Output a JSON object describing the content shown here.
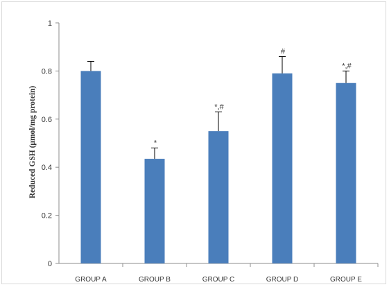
{
  "chart_data": {
    "type": "bar",
    "title": "",
    "xlabel": "",
    "ylabel": "Reduced GSH (μmol/mg protein)",
    "categories": [
      "GROUP A",
      "GROUP B",
      "GROUP C",
      "GROUP D",
      "GROUP E"
    ],
    "values": [
      0.8,
      0.435,
      0.55,
      0.79,
      0.75
    ],
    "error_plus": [
      0.04,
      0.045,
      0.08,
      0.07,
      0.05
    ],
    "significance": [
      "",
      "*",
      "*,#",
      "#",
      "*,#"
    ],
    "ylim": [
      0,
      1
    ],
    "yticks": [
      "0",
      "0.2",
      "0.4",
      "0.6",
      "0.8",
      "1"
    ],
    "grid": false,
    "bar_color": "#4a7ebb"
  }
}
